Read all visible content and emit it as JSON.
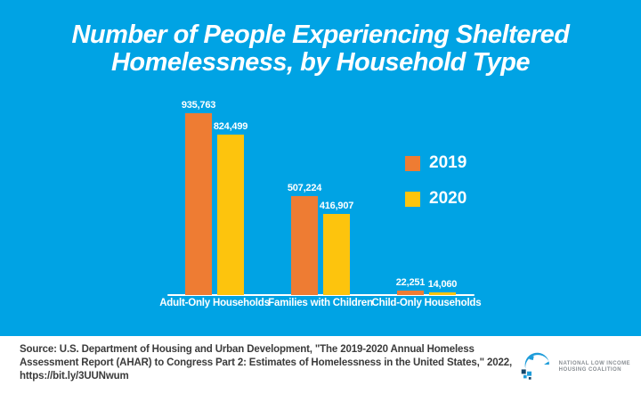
{
  "title": {
    "line1": "Number of People Experiencing Sheltered",
    "line2": "Homelessness, by Household Type"
  },
  "colors": {
    "background": "#00A3E4",
    "bar_2019": "#EE7C33",
    "bar_2020": "#FDC40D",
    "axis_line": "#FFFFFF",
    "title_text": "#FFFFFF",
    "footer_background": "#FFFFFF",
    "footer_text": "#3B3B3B",
    "logo_blue": "#1E9CD9",
    "logo_navy": "#15476B",
    "logo_text": "#8A8F94"
  },
  "chart_data": {
    "type": "bar",
    "title": "Number of People Experiencing Sheltered Homelessness, by Household Type",
    "categories": [
      "Adult-Only Households",
      "Families with Children",
      "Child-Only Households"
    ],
    "series": [
      {
        "name": "2019",
        "color": "#EE7C33",
        "values": [
          935763,
          507224,
          22251
        ],
        "value_labels": [
          "935,763",
          "507,224",
          "22,251"
        ]
      },
      {
        "name": "2020",
        "color": "#FDC40D",
        "values": [
          824499,
          416907,
          14060
        ],
        "value_labels": [
          "824,499",
          "416,907",
          "14,060"
        ]
      }
    ],
    "ylim": [
      0,
      935763
    ],
    "xlabel": "",
    "ylabel": "",
    "grid": false,
    "value_labels_shown": true,
    "legend_position": "center-right"
  },
  "footer": {
    "source_lines": [
      "Source: U.S. Department of Housing and Urban Development, \"The 2019-2020 Annual Homeless",
      "Assessment Report (AHAR) to Congress Part 2: Estimates of Homelessness in the United States,\" 2022,",
      "https://bit.ly/3UUNwum"
    ],
    "logo": {
      "line1": "NATIONAL LOW INCOME",
      "line2": "HOUSING COALITION"
    }
  }
}
